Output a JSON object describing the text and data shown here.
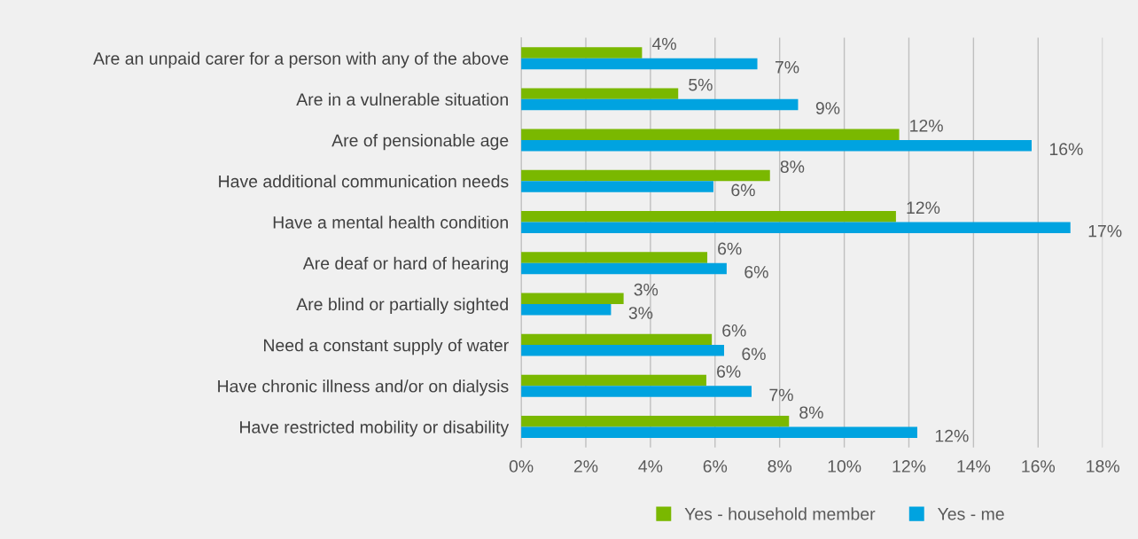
{
  "chart_data": {
    "type": "bar",
    "orientation": "horizontal",
    "categories": [
      "Are an unpaid carer for a person with any of the above",
      "Are in a vulnerable situation",
      "Are of pensionable age",
      "Have additional communication needs",
      "Have a mental health condition",
      "Are deaf or hard of hearing",
      "Are blind or partially sighted",
      "Need a constant supply of water",
      "Have chronic illness and/or on dialysis",
      "Have restricted mobility or disability"
    ],
    "series": [
      {
        "name": "Yes - household member",
        "color": "#7ab800",
        "values": [
          3.74,
          4.86,
          11.7,
          7.7,
          11.6,
          5.76,
          3.17,
          5.9,
          5.73,
          8.29
        ],
        "value_labels": [
          "4%",
          "5%",
          "12%",
          "8%",
          "12%",
          "6%",
          "3%",
          "6%",
          "6%",
          "8%"
        ]
      },
      {
        "name": "Yes - me",
        "color": "#00a3e0",
        "values": [
          7.31,
          8.57,
          15.8,
          5.95,
          17.0,
          6.36,
          2.78,
          6.28,
          7.13,
          12.26
        ],
        "value_labels": [
          "7%",
          "9%",
          "16%",
          "6%",
          "17%",
          "6%",
          "3%",
          "6%",
          "7%",
          "12%"
        ]
      }
    ],
    "xlim": [
      0,
      18
    ],
    "xticks": [
      {
        "value": 0,
        "label": "0%"
      },
      {
        "value": 2,
        "label": "2%"
      },
      {
        "value": 4,
        "label": "4%"
      },
      {
        "value": 6,
        "label": "6%"
      },
      {
        "value": 8,
        "label": "8%"
      },
      {
        "value": 10,
        "label": "10%"
      },
      {
        "value": 12,
        "label": "12%"
      },
      {
        "value": 14,
        "label": "14%"
      },
      {
        "value": 16,
        "label": "16%"
      },
      {
        "value": 18,
        "label": "18%"
      }
    ],
    "grid": "x",
    "legend": "bottom"
  }
}
